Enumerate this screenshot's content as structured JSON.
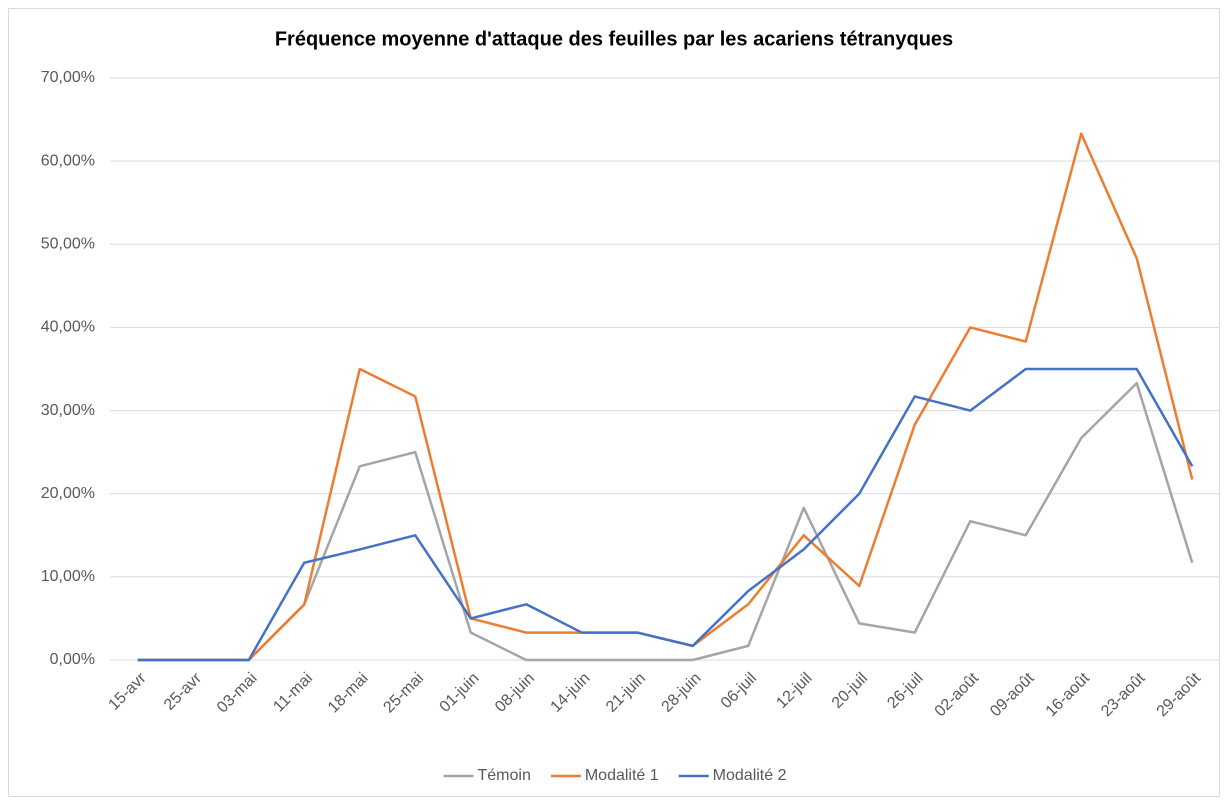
{
  "chart_data": {
    "type": "line",
    "title": "Fréquence moyenne d'attaque des feuilles par les acariens tétranyques",
    "categories": [
      "15-avr",
      "25-avr",
      "03-mai",
      "11-mai",
      "18-mai",
      "25-mai",
      "01-juin",
      "08-juin",
      "14-juin",
      "21-juin",
      "28-juin",
      "06-juil",
      "12-juil",
      "20-juil",
      "26-juil",
      "02-août",
      "09-août",
      "16-août",
      "23-août",
      "29-août"
    ],
    "series": [
      {
        "name": "Témoin",
        "color": "#a5a5a5",
        "values": [
          0,
          0,
          0,
          6.67,
          23.3,
          25,
          3.3,
          0,
          0,
          0,
          0,
          1.7,
          18.3,
          4.4,
          3.3,
          16.7,
          15,
          26.7,
          33.3,
          11.7
        ]
      },
      {
        "name": "Modalité 1",
        "color": "#ed7d31",
        "values": [
          0,
          0,
          0,
          6.67,
          35,
          31.7,
          5,
          3.3,
          3.3,
          3.3,
          1.7,
          6.7,
          15,
          8.9,
          28.3,
          40,
          38.3,
          63.3,
          48.3,
          21.7
        ]
      },
      {
        "name": "Modalité 2",
        "color": "#4472c4",
        "values": [
          0,
          0,
          0,
          11.7,
          13.3,
          15,
          5,
          6.7,
          3.3,
          3.3,
          1.7,
          8.3,
          13.3,
          20,
          31.7,
          30,
          35,
          35,
          35,
          23.3
        ]
      }
    ],
    "ylim": [
      0,
      70
    ],
    "yticks": [
      {
        "value": 0,
        "label": "0,00%"
      },
      {
        "value": 10,
        "label": "10,00%"
      },
      {
        "value": 20,
        "label": "20,00%"
      },
      {
        "value": 30,
        "label": "30,00%"
      },
      {
        "value": 40,
        "label": "40,00%"
      },
      {
        "value": 50,
        "label": "50,00%"
      },
      {
        "value": 60,
        "label": "60,00%"
      },
      {
        "value": 70,
        "label": "70,00%"
      }
    ],
    "grid": true,
    "legend": "bottom"
  }
}
